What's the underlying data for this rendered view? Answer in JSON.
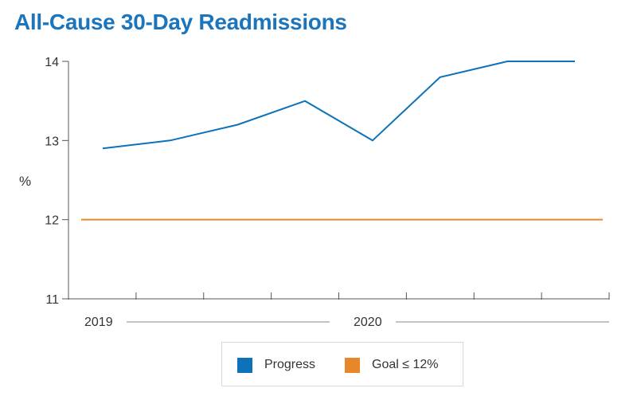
{
  "title": "All-Cause 30-Day Readmissions",
  "colors": {
    "progress": "#0d72b9",
    "goal": "#e8862a",
    "axis": "#555555",
    "text": "#333333"
  },
  "chart_data": {
    "type": "line",
    "title": "All-Cause 30-Day Readmissions",
    "ylabel": "%",
    "ylim": [
      11,
      14
    ],
    "yticks": [
      11,
      12,
      13,
      14
    ],
    "period_labels": [
      "2019",
      "2020"
    ],
    "grid": false,
    "legend_position": "bottom",
    "series": [
      {
        "name": "Progress",
        "color": "#0d72b9",
        "values": [
          12.9,
          13.0,
          13.2,
          13.5,
          13.0,
          13.8,
          14.0,
          14.0
        ]
      },
      {
        "name": "Goal ≤ 12%",
        "color": "#e8862a",
        "values": [
          12,
          12
        ]
      }
    ]
  },
  "legend": [
    {
      "label": "Progress",
      "color": "#0d72b9"
    },
    {
      "label": "Goal ≤ 12%",
      "color": "#e8862a"
    }
  ]
}
